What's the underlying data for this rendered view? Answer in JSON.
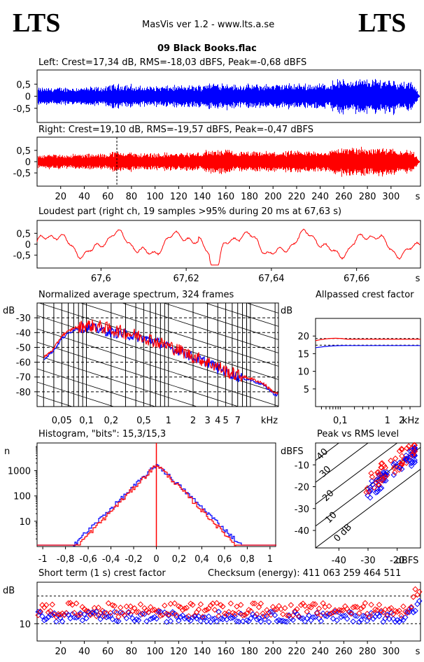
{
  "header": {
    "logo_left": "LTS",
    "logo_right": "LTS",
    "app_title": "MasVis ver 1.2 - www.lts.a.se",
    "file_name": "09 Black Books.flac"
  },
  "colors": {
    "left": "#0000ff",
    "right": "#ff0000",
    "grid": "#000000"
  },
  "panels": {
    "left_title": "Left: Crest=17,34 dB, RMS=-18,03 dBFS, Peak=-0,68 dBFS",
    "right_title": "Right: Crest=19,10 dB, RMS=-19,57 dBFS, Peak=-0,47 dBFS",
    "loudest_title": "Loudest part (right ch, 19 samples >95% during 20 ms at 67,63 s)",
    "spectrum_title": "Normalized average spectrum, 324 frames",
    "allpass_title": "Allpassed crest factor",
    "histogram_title": "Histogram, \"bits\": 15,3/15,3",
    "pvr_title": "Peak vs RMS level",
    "shortterm_title": "Short term (1 s) crest factor",
    "checksum": "Checksum (energy):   411 063 259 464 511"
  },
  "chart_data": [
    {
      "type": "line",
      "title": "Left waveform",
      "ylim": [
        -1,
        1
      ],
      "yticks": [
        "0,5",
        "0",
        "-0,5"
      ],
      "xlim": [
        0,
        325
      ],
      "series": [
        {
          "name": "Left",
          "color": "#0000ff"
        }
      ]
    },
    {
      "type": "line",
      "title": "Right waveform",
      "ylim": [
        -1,
        1
      ],
      "yticks": [
        "0,5",
        "0",
        "-0,5"
      ],
      "xticks": [
        "20",
        "40",
        "60",
        "80",
        "100",
        "120",
        "140",
        "160",
        "180",
        "200",
        "220",
        "240",
        "260",
        "280",
        "300"
      ],
      "xunit": "s",
      "xlim": [
        0,
        325
      ],
      "marker_x": 67.63,
      "series": [
        {
          "name": "Right",
          "color": "#ff0000"
        }
      ]
    },
    {
      "type": "line",
      "title": "Loudest part",
      "ylim": [
        -1,
        1
      ],
      "yticks": [
        "0,5",
        "0",
        "-0,5"
      ],
      "xticks": [
        "67,6",
        "67,62",
        "67,64",
        "67,66"
      ],
      "xunit": "s",
      "xlim": [
        67.585,
        67.675
      ]
    },
    {
      "type": "line",
      "title": "Normalized average spectrum",
      "ylabel": "dB",
      "xunit": "kHz",
      "yticks": [
        "-30",
        "-40",
        "-50",
        "-60",
        "-70",
        "-80"
      ],
      "ylim": [
        -90,
        -20
      ],
      "xticks": [
        "0,05",
        "0,1",
        "0,2",
        "0,5",
        "1",
        "2",
        "3",
        "4",
        "5",
        "7"
      ],
      "series": [
        {
          "name": "Left",
          "color": "#0000ff",
          "x_khz": [
            0.03,
            0.04,
            0.05,
            0.07,
            0.1,
            0.15,
            0.2,
            0.3,
            0.5,
            0.7,
            1,
            1.5,
            2,
            3,
            4,
            5,
            7,
            10,
            14,
            20
          ],
          "y": [
            -58,
            -52,
            -44,
            -38,
            -36,
            -38,
            -40,
            -41,
            -44,
            -46,
            -50,
            -53,
            -57,
            -60,
            -64,
            -66,
            -70,
            -72,
            -75,
            -82
          ]
        },
        {
          "name": "Right",
          "color": "#ff0000",
          "x_khz": [
            0.03,
            0.04,
            0.05,
            0.07,
            0.1,
            0.15,
            0.2,
            0.3,
            0.5,
            0.7,
            1,
            1.5,
            2,
            3,
            4,
            5,
            7,
            10,
            14,
            20
          ],
          "y": [
            -57,
            -51,
            -42,
            -37,
            -35,
            -36,
            -38,
            -40,
            -43,
            -46,
            -49,
            -53,
            -56,
            -60,
            -63,
            -66,
            -69,
            -71,
            -74,
            -81
          ]
        }
      ]
    },
    {
      "type": "line",
      "title": "Allpassed crest factor",
      "ylabel": "dB",
      "xunit": "kHz",
      "yticks": [
        "20",
        "15",
        "10",
        "5"
      ],
      "ylim": [
        0,
        30
      ],
      "xticks": [
        "0,1",
        "1",
        "2"
      ],
      "series": [
        {
          "name": "Left",
          "color": "#0000ff",
          "y_start": 17.0,
          "y_end": 17.3
        },
        {
          "name": "Right",
          "color": "#ff0000",
          "y_start": 19.0,
          "y_end": 19.1
        }
      ]
    },
    {
      "type": "line",
      "title": "Histogram",
      "ylabel": "n",
      "yticks": [
        "1000",
        "100",
        "10"
      ],
      "xticks": [
        "-1",
        "-0,8",
        "-0,6",
        "-0,4",
        "-0,2",
        "0",
        "0,2",
        "0,4",
        "0,6",
        "0,8",
        "1"
      ],
      "xlim": [
        -1.05,
        1.05
      ],
      "peak_count": 1800
    },
    {
      "type": "scatter",
      "title": "Peak vs RMS level",
      "ylabel": "dBFS",
      "xunit": "dBFS",
      "yticks": [
        "-10",
        "-20",
        "-30",
        "-40"
      ],
      "xticks": [
        "-40",
        "-30",
        "-20"
      ],
      "xlim": [
        -48,
        -12
      ],
      "ylim": [
        -48,
        0
      ],
      "diagonal_labels": [
        "40",
        "30",
        "20",
        "10",
        "0 dB"
      ]
    },
    {
      "type": "scatter",
      "title": "Short term (1 s) crest factor",
      "ylabel": "dB",
      "yticks": [
        "10"
      ],
      "xticks": [
        "20",
        "40",
        "60",
        "80",
        "100",
        "120",
        "140",
        "160",
        "180",
        "200",
        "220",
        "240",
        "260",
        "280",
        "300"
      ],
      "xunit": "s",
      "xlim": [
        0,
        325
      ]
    }
  ]
}
